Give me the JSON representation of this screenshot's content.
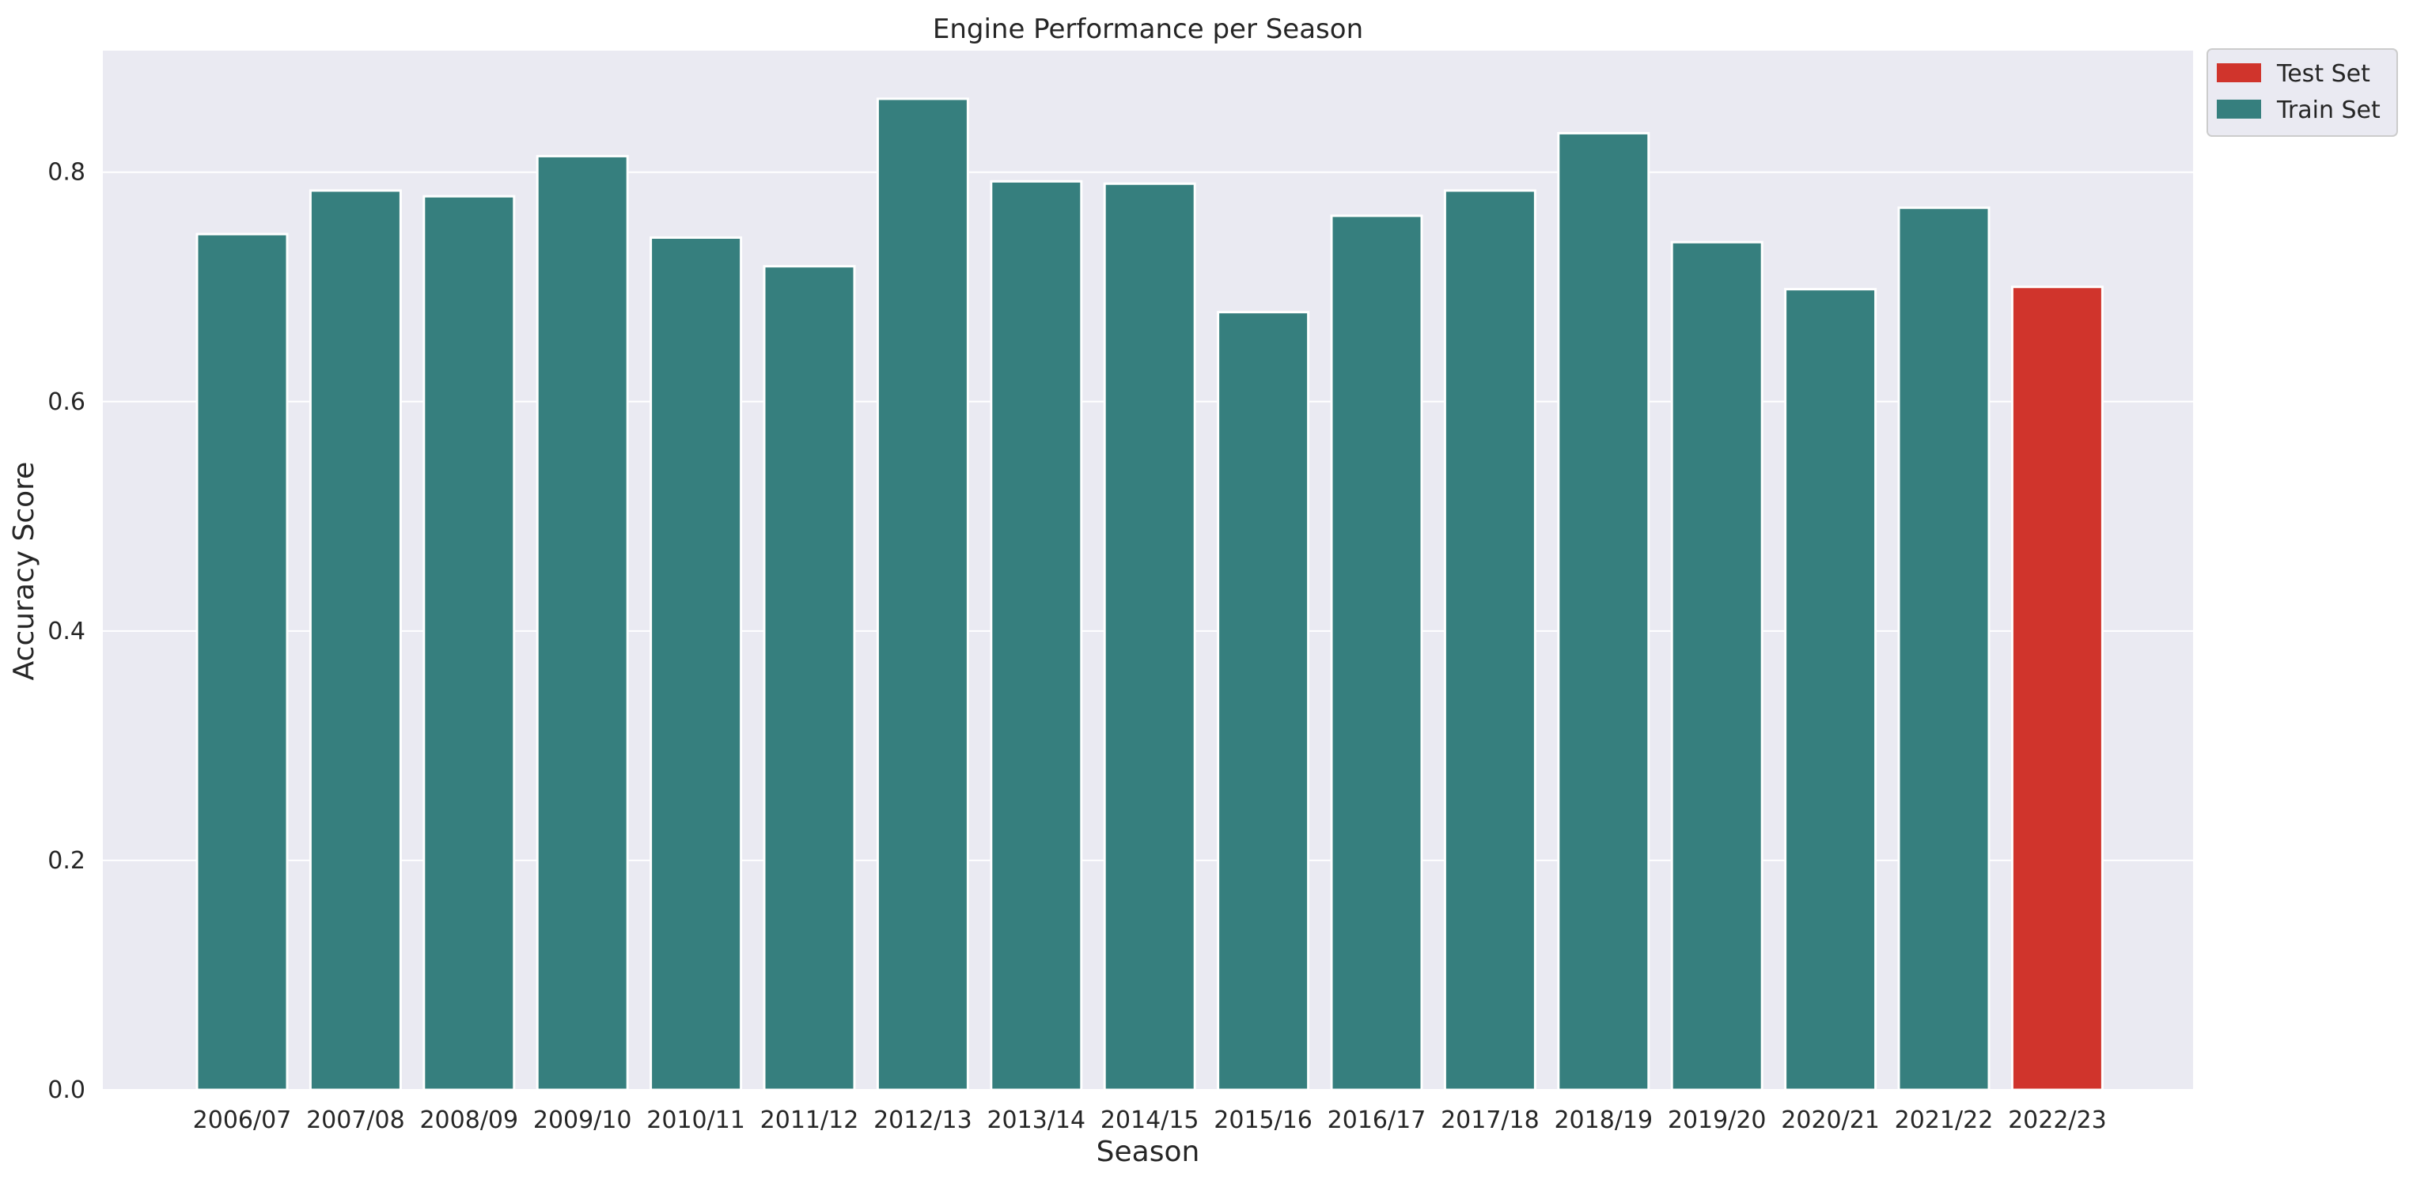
{
  "chart_data": {
    "type": "bar",
    "title": "Engine Performance per Season",
    "xlabel": "Season",
    "ylabel": "Accuracy Score",
    "categories": [
      "2006/07",
      "2007/08",
      "2008/09",
      "2009/10",
      "2010/11",
      "2011/12",
      "2012/13",
      "2013/14",
      "2014/15",
      "2015/16",
      "2016/17",
      "2017/18",
      "2018/19",
      "2019/20",
      "2020/21",
      "2021/22",
      "2022/23"
    ],
    "values": [
      0.746,
      0.784,
      0.779,
      0.814,
      0.743,
      0.718,
      0.864,
      0.792,
      0.79,
      0.678,
      0.762,
      0.784,
      0.834,
      0.739,
      0.698,
      0.769,
      0.7
    ],
    "groups": [
      "Train Set",
      "Train Set",
      "Train Set",
      "Train Set",
      "Train Set",
      "Train Set",
      "Train Set",
      "Train Set",
      "Train Set",
      "Train Set",
      "Train Set",
      "Train Set",
      "Train Set",
      "Train Set",
      "Train Set",
      "Train Set",
      "Test Set"
    ],
    "legend": [
      {
        "name": "Test Set",
        "color": "#d0342c"
      },
      {
        "name": "Train Set",
        "color": "#367f7e"
      }
    ],
    "legend_position": "outside top-right",
    "yticks": [
      "0.0",
      "0.2",
      "0.4",
      "0.6",
      "0.8"
    ],
    "ytick_values": [
      0,
      0.2,
      0.4,
      0.6,
      0.8
    ],
    "ylim": [
      0,
      0.906
    ],
    "grid": true,
    "colors": {
      "background": "#eaeaf2",
      "grid": "#ffffff",
      "train": "#367f7e",
      "test": "#d0342c"
    }
  }
}
